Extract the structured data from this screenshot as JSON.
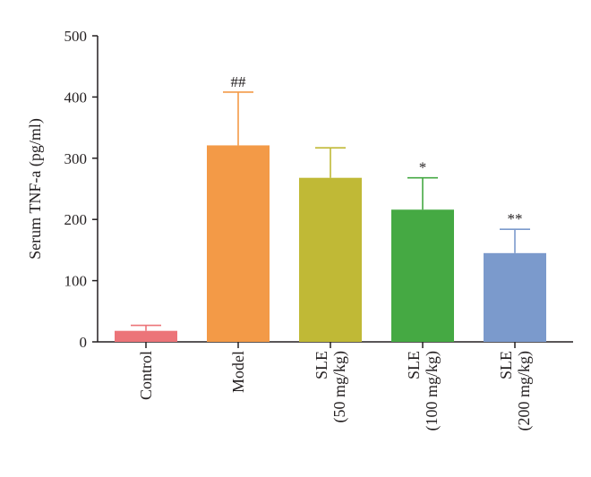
{
  "chart_data": {
    "type": "bar",
    "ylabel": "Serum TNF-a (pg/ml)",
    "xlabel": "",
    "ylim": [
      0,
      500
    ],
    "yticks": [
      0,
      100,
      200,
      300,
      400,
      500
    ],
    "grid": false,
    "categories": [
      [
        "Control"
      ],
      [
        "Model"
      ],
      [
        "SLE",
        "(50 mg/kg)"
      ],
      [
        "SLE",
        "(100 mg/kg)"
      ],
      [
        "SLE",
        "(200 mg/kg)"
      ]
    ],
    "values": [
      18,
      321,
      268,
      216,
      145
    ],
    "errors": [
      9,
      87,
      49,
      52,
      39
    ],
    "significance": [
      "",
      "##",
      "",
      "*",
      "**"
    ],
    "colors": [
      "#ec7479",
      "#f39a47",
      "#c0b936",
      "#45a943",
      "#7b9acc"
    ]
  }
}
